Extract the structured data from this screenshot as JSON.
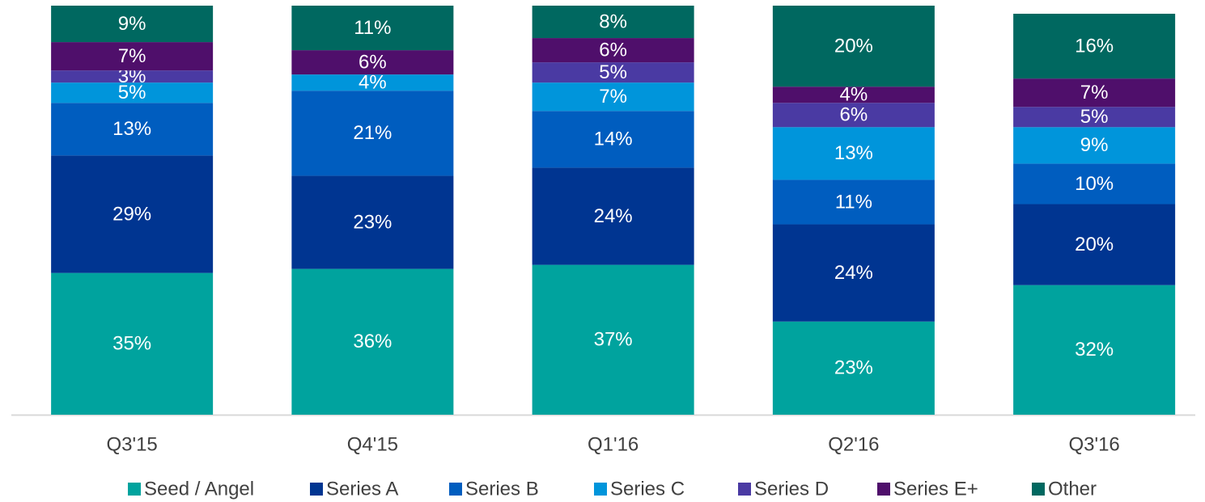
{
  "chart_data": {
    "type": "stacked_bar",
    "categories": [
      "Q3'15",
      "Q4'15",
      "Q1'16",
      "Q2'16",
      "Q3'16"
    ],
    "ylim": [
      0,
      100
    ],
    "legend": "bottom",
    "series": [
      {
        "name": "Seed / Angel",
        "color": "#00a39e",
        "values": [
          35,
          36,
          37,
          23,
          32
        ],
        "value_labels": [
          "35%",
          "36%",
          "37%",
          "23%",
          "32%"
        ]
      },
      {
        "name": "Series A",
        "color": "#003591",
        "values": [
          29,
          23,
          24,
          24,
          20
        ],
        "value_labels": [
          "29%",
          "23%",
          "24%",
          "24%",
          "20%"
        ]
      },
      {
        "name": "Series B",
        "color": "#005dbf",
        "values": [
          13,
          21,
          14,
          11,
          10
        ],
        "value_labels": [
          "13%",
          "21%",
          "14%",
          "11%",
          "10%"
        ]
      },
      {
        "name": "Series C",
        "color": "#0095db",
        "values": [
          5,
          4,
          7,
          13,
          9
        ],
        "value_labels": [
          "5%",
          "4%",
          "7%",
          "13%",
          "9%"
        ]
      },
      {
        "name": "Series D",
        "color": "#4a3aa3",
        "values": [
          3,
          0,
          5,
          6,
          5
        ],
        "value_labels": [
          "3%",
          null,
          "5%",
          "6%",
          "5%"
        ]
      },
      {
        "name": "Series E+",
        "color": "#4f0f6b",
        "values": [
          7,
          6,
          6,
          4,
          7
        ],
        "value_labels": [
          "7%",
          "6%",
          "6%",
          "4%",
          "7%"
        ]
      },
      {
        "name": "Other",
        "color": "#006860",
        "values": [
          9,
          11,
          8,
          20,
          16
        ],
        "value_labels": [
          "9%",
          "11%",
          "8%",
          "20%",
          "16%"
        ]
      }
    ]
  }
}
